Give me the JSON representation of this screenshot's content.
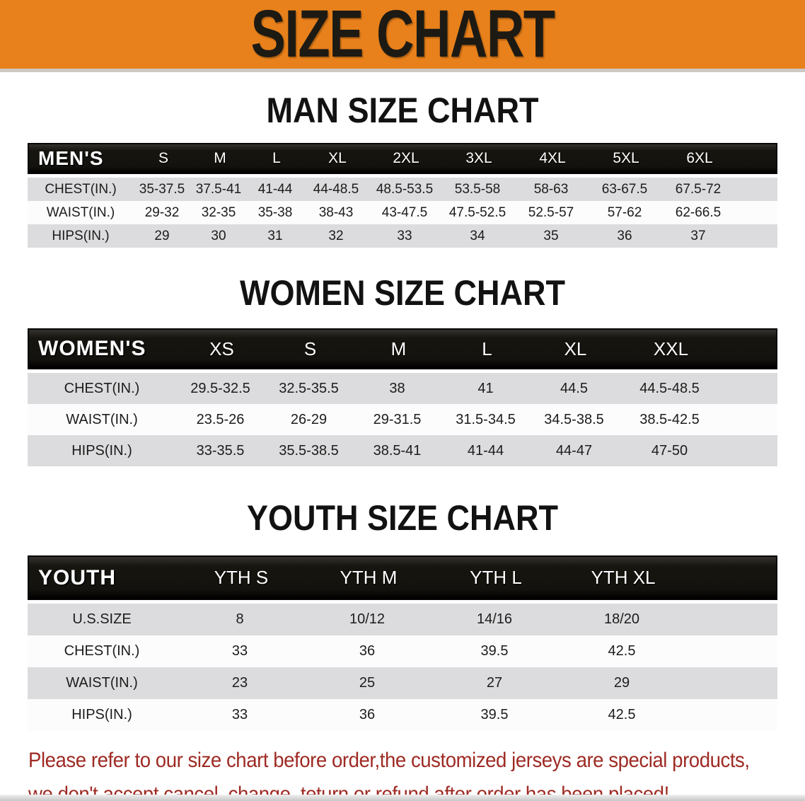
{
  "banner": {
    "title": "SIZE CHART"
  },
  "sections": [
    {
      "id": "men",
      "heading": "MAN SIZE CHART",
      "table": {
        "label": "MEN'S",
        "columns": [
          "S",
          "M",
          "L",
          "XL",
          "2XL",
          "3XL",
          "4XL",
          "5XL",
          "6XL"
        ],
        "rows": [
          {
            "label": "CHEST(IN.)",
            "values": [
              "35-37.5",
              "37.5-41",
              "41-44",
              "44-48.5",
              "48.5-53.5",
              "53.5-58",
              "58-63",
              "63-67.5",
              "67.5-72"
            ]
          },
          {
            "label": "WAIST(IN.)",
            "values": [
              "29-32",
              "32-35",
              "35-38",
              "38-43",
              "43-47.5",
              "47.5-52.5",
              "52.5-57",
              "57-62",
              "62-66.5"
            ]
          },
          {
            "label": "HIPS(IN.)",
            "values": [
              "29",
              "30",
              "31",
              "32",
              "33",
              "34",
              "35",
              "36",
              "37"
            ]
          }
        ]
      }
    },
    {
      "id": "women",
      "heading": "WOMEN SIZE CHART",
      "table": {
        "label": "WOMEN'S",
        "columns": [
          "XS",
          "S",
          "M",
          "L",
          "XL",
          "XXL"
        ],
        "rows": [
          {
            "label": "CHEST(IN.)",
            "values": [
              "29.5-32.5",
              "32.5-35.5",
              "38",
              "41",
              "44.5",
              "44.5-48.5"
            ]
          },
          {
            "label": "WAIST(IN.)",
            "values": [
              "23.5-26",
              "26-29",
              "29-31.5",
              "31.5-34.5",
              "34.5-38.5",
              "38.5-42.5"
            ]
          },
          {
            "label": "HIPS(IN.)",
            "values": [
              "33-35.5",
              "35.5-38.5",
              "38.5-41",
              "41-44",
              "44-47",
              "47-50"
            ]
          }
        ]
      }
    },
    {
      "id": "youth",
      "heading": "YOUTH SIZE CHART",
      "table": {
        "label": "YOUTH",
        "columns": [
          "YTH S",
          "YTH M",
          "YTH L",
          "YTH XL"
        ],
        "rows": [
          {
            "label": "U.S.SIZE",
            "values": [
              "8",
              "10/12",
              "14/16",
              "18/20"
            ]
          },
          {
            "label": "CHEST(IN.)",
            "values": [
              "33",
              "36",
              "39.5",
              "42.5"
            ]
          },
          {
            "label": "WAIST(IN.)",
            "values": [
              "23",
              "25",
              "27",
              "29"
            ]
          },
          {
            "label": "HIPS(IN.)",
            "values": [
              "33",
              "36",
              "39.5",
              "42.5"
            ]
          }
        ]
      }
    }
  ],
  "disclaimer": {
    "line1": "Please refer to our size chart before order,the customized jerseys are special products,",
    "line2": "we don't accept cancel, change, teturn or refund after order has been placed!"
  },
  "colors": {
    "banner_bg": "#E8811B",
    "header_bg": "#141210",
    "row_gray": "#DCDCDE",
    "row_white": "#FCFCFC",
    "disclaimer_red": "#9E2B24"
  }
}
